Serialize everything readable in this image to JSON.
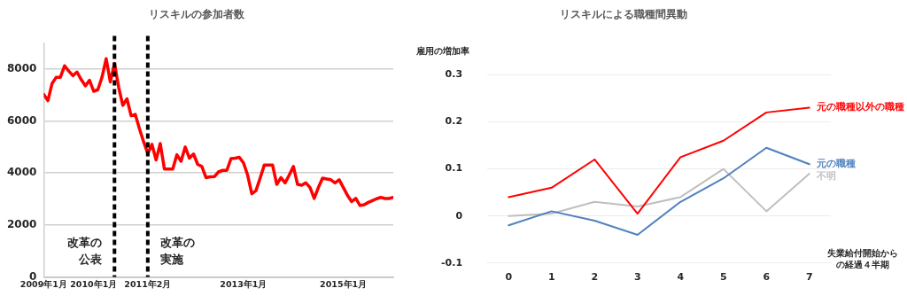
{
  "chart_data": [
    {
      "type": "line",
      "title": "リスキルの参加者数",
      "x": [
        "2009-01",
        "2009-02",
        "2009-03",
        "2009-04",
        "2009-05",
        "2009-06",
        "2009-07",
        "2009-08",
        "2009-09",
        "2009-10",
        "2009-11",
        "2009-12",
        "2010-01",
        "2010-02",
        "2010-03",
        "2010-04",
        "2010-05",
        "2010-06",
        "2010-07",
        "2010-08",
        "2010-09",
        "2010-10",
        "2010-11",
        "2010-12",
        "2011-01",
        "2011-02",
        "2011-03",
        "2011-04",
        "2011-05",
        "2011-06",
        "2011-07",
        "2011-08",
        "2011-09",
        "2011-10",
        "2011-11",
        "2011-12",
        "2012-01",
        "2012-02",
        "2012-03",
        "2012-04",
        "2012-05",
        "2012-06",
        "2012-07",
        "2012-08",
        "2012-09",
        "2012-10",
        "2012-11",
        "2012-12",
        "2013-01",
        "2013-02",
        "2013-03",
        "2013-04",
        "2013-05",
        "2013-06",
        "2013-07",
        "2013-08",
        "2013-09",
        "2013-10",
        "2013-11",
        "2013-12",
        "2014-01",
        "2014-02",
        "2014-03",
        "2014-04",
        "2014-05",
        "2014-06",
        "2014-07",
        "2014-08",
        "2014-09",
        "2014-10",
        "2014-11",
        "2014-12",
        "2015-01",
        "2015-02",
        "2015-03",
        "2015-04",
        "2015-05",
        "2015-06",
        "2015-07",
        "2015-08",
        "2015-09",
        "2015-10",
        "2015-11",
        "2015-12",
        "2016-01"
      ],
      "series": [
        {
          "color": "#ff0000",
          "values": [
            7020,
            6780,
            7440,
            7680,
            7680,
            8120,
            7920,
            7740,
            7880,
            7590,
            7350,
            7560,
            7140,
            7200,
            7680,
            8390,
            7500,
            8210,
            7300,
            6600,
            6850,
            6200,
            6250,
            5700,
            5200,
            4750,
            5100,
            4500,
            5130,
            4150,
            4150,
            4150,
            4700,
            4450,
            5000,
            4570,
            4730,
            4330,
            4250,
            3820,
            3850,
            3860,
            4040,
            4100,
            4100,
            4550,
            4570,
            4600,
            4390,
            3920,
            3200,
            3320,
            3800,
            4300,
            4300,
            4300,
            3560,
            3820,
            3620,
            3920,
            4250,
            3560,
            3530,
            3620,
            3440,
            3020,
            3440,
            3800,
            3770,
            3740,
            3620,
            3740,
            3440,
            3140,
            2900,
            3020,
            2750,
            2780,
            2870,
            2940,
            3010,
            3060,
            3020,
            3020,
            3060
          ]
        }
      ],
      "xlim": [
        "2009-01",
        "2016-01"
      ],
      "xticks": [
        {
          "value": "2009-01",
          "label": "2009年1月"
        },
        {
          "value": "2010-01",
          "label": "2010年1月"
        },
        {
          "value": "2011-02",
          "label": "2011年2月"
        },
        {
          "value": "2013-01",
          "label": "2013年1月"
        },
        {
          "value": "2015-01",
          "label": "2015年1月"
        }
      ],
      "ylim": [
        0,
        9000
      ],
      "yticks": [
        0,
        2000,
        4000,
        6000,
        8000
      ],
      "ref_lines": [
        {
          "axis": "x",
          "value": "2010-06",
          "label": "改革の公表",
          "color": "#000000",
          "line_style": "dashed"
        },
        {
          "axis": "x",
          "value": "2011-02",
          "label": "改革の実施",
          "color": "#000000",
          "line_style": "dashed"
        }
      ],
      "grid": "y",
      "legend": false,
      "marker": "none",
      "line_style": "solid"
    },
    {
      "type": "line",
      "title": "リスキルによる職種間異動",
      "ylabel": "雇用の増加率",
      "xlabel": "失業給付開始からの経過４半期",
      "categories": [
        "0",
        "1",
        "2",
        "3",
        "4",
        "5",
        "6",
        "7"
      ],
      "series": [
        {
          "name": "元の職種以外の職種",
          "color": "#ff0000",
          "values": [
            0.04,
            0.06,
            0.12,
            0.005,
            0.125,
            0.16,
            0.22,
            0.23
          ]
        },
        {
          "name": "元の職種",
          "color": "#4f81bd",
          "values": [
            -0.02,
            0.01,
            -0.01,
            -0.04,
            0.03,
            0.08,
            0.145,
            0.11
          ]
        },
        {
          "name": "不明",
          "color": "#bfbfbf",
          "values": [
            0,
            0.005,
            0.03,
            0.02,
            0.04,
            0.1,
            0.01,
            0.09
          ]
        }
      ],
      "ylim": [
        -0.1,
        0.3
      ],
      "yticks": [
        -0.1,
        0,
        0.1,
        0.2,
        0.3
      ],
      "grid": "y",
      "legend": false,
      "marker": "none",
      "line_style": "solid"
    }
  ]
}
